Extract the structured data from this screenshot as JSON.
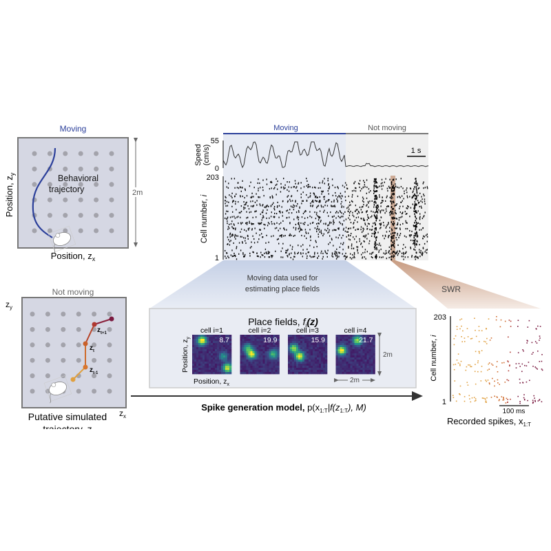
{
  "panel_moving": {
    "title": "Moving",
    "trajectory_label_1": "Behavioral",
    "trajectory_label_2": "trajectory",
    "ylabel": "Position, z",
    "ylabel_sub": "y",
    "xlabel": "Position, z",
    "xlabel_sub": "x",
    "scale": "2m"
  },
  "panel_data": {
    "moving_label": "Moving",
    "not_moving_label": "Not moving",
    "speed_label_1": "Speed",
    "speed_label_2": "(cm/s)",
    "speed_max": "55",
    "speed_min": "0",
    "scalebar": "1 s",
    "cell_max": "203",
    "cell_min": "1",
    "cell_label": "Cell number, ",
    "cell_label_i": "i"
  },
  "place_fields": {
    "caption_1": "Moving data used for",
    "caption_2": "estimating place fields",
    "title": "Place fields, ",
    "title_f": "f",
    "title_sub": "i",
    "title_arg": "(z)",
    "ylabel": "Position, z",
    "ylabel_sub": "y",
    "xlabel": "Position, z",
    "xlabel_sub": "x",
    "scale_v": "2m",
    "scale_h": "2m",
    "cells": [
      {
        "label": "cell i=1",
        "max": "8.7"
      },
      {
        "label": "cell i=2",
        "max": "19.9"
      },
      {
        "label": "cell i=3",
        "max": "15.9"
      },
      {
        "label": "cell i=4",
        "max": "21.7"
      }
    ]
  },
  "model": {
    "label": "Spike generation model, ",
    "formula": "p(x",
    "sub1": "1:T",
    "mid": "|f(z",
    "sub2": "1:T",
    "end": "), M)"
  },
  "panel_sim": {
    "title": "Not moving",
    "zy": "z",
    "zy_sub": "y",
    "zx": "z",
    "zx_sub": "x",
    "caption_1": "Putative simulated",
    "caption_2": "trajectory, z",
    "z_prev": "z",
    "z_prev_sub": "t-1",
    "z_cur": "z",
    "z_cur_sub": "t",
    "z_next": "z",
    "z_next_sub": "t+1"
  },
  "panel_swr": {
    "swr_label": "SWR",
    "cell_max": "203",
    "cell_min": "1",
    "cell_label": "Cell number, ",
    "cell_label_i": "i",
    "scalebar": "100 ms",
    "caption": "Recorded spikes, x",
    "caption_sub": "1:T"
  },
  "colors": {
    "moving": "#2b3f9a",
    "not_moving": "#6b6b6b",
    "arena": "#d5d7e3",
    "swr": "#c49a80"
  }
}
